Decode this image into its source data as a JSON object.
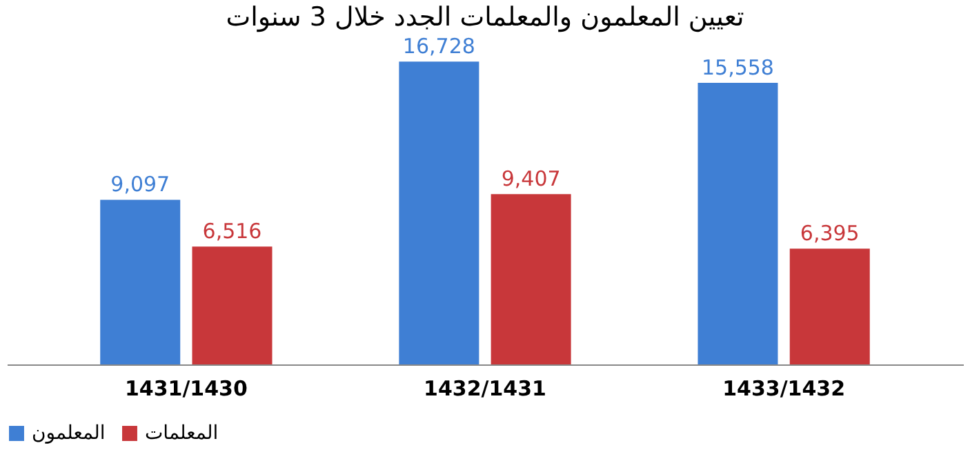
{
  "chart_data": {
    "type": "bar",
    "title": "تعيين المعلمون والمعلمات الجدد خلال 3 سنوات",
    "categories": [
      "1431/1430",
      "1432/1431",
      "1433/1432"
    ],
    "series": [
      {
        "name": "المعلمون",
        "color": "#3f7fd4",
        "values": [
          9097,
          16728,
          15558
        ],
        "value_labels": [
          "9,097",
          "16,728",
          "15,558"
        ]
      },
      {
        "name": "المعلمات",
        "color": "#c8373a",
        "values": [
          6516,
          9407,
          6395
        ],
        "value_labels": [
          "6,516",
          "9,407",
          "6,395"
        ]
      }
    ],
    "grid": false,
    "legend": "bottom"
  }
}
